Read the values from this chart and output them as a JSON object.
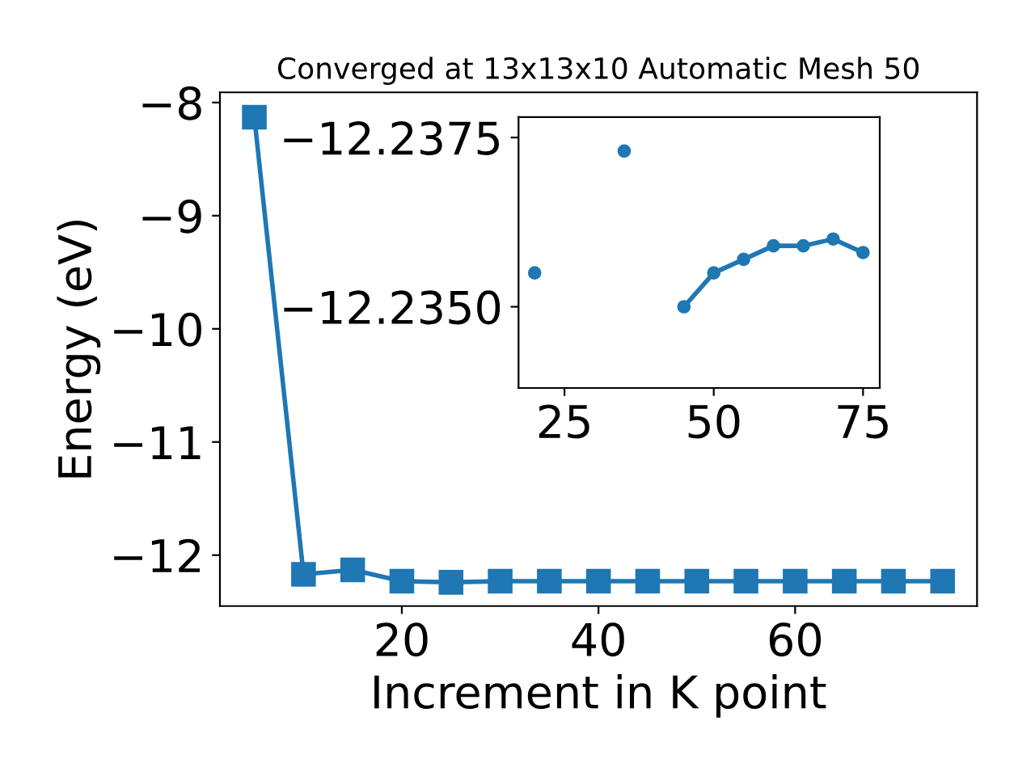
{
  "chart_data": [
    {
      "type": "line",
      "title": "Converged at 13x13x10 Automatic Mesh 50",
      "xlabel": "Increment in K point",
      "ylabel": "Energy (eV)",
      "x": [
        5,
        10,
        15,
        20,
        25,
        30,
        35,
        40,
        45,
        50,
        55,
        60,
        65,
        70,
        75
      ],
      "series": [
        {
          "color": "#1f77b4",
          "values": [
            -8.13,
            -12.17,
            -12.13,
            -12.23,
            -12.24,
            -12.23,
            -12.23,
            -12.23,
            -12.23,
            -12.23,
            -12.23,
            -12.23,
            -12.23,
            -12.23,
            -12.23
          ]
        }
      ],
      "marker": "square",
      "xlim": [
        1.5,
        78.5
      ],
      "ylim": [
        -12.45,
        -7.91
      ],
      "xticks": [
        20,
        40,
        60
      ],
      "yticks": [
        {
          "value": -12,
          "label": "−12"
        },
        {
          "value": -11,
          "label": "−11"
        },
        {
          "value": -10,
          "label": "−10"
        },
        {
          "value": -9,
          "label": "−9"
        },
        {
          "value": -8,
          "label": "−8"
        }
      ]
    },
    {
      "type": "line",
      "x": [
        20,
        25,
        30,
        35,
        40,
        45,
        50,
        55,
        60,
        65,
        70,
        75
      ],
      "series": [
        {
          "color": "#1f77b4",
          "values": [
            -12.2355,
            null,
            null,
            -12.2373,
            null,
            -12.235,
            -12.2355,
            -12.2357,
            -12.2359,
            -12.2359,
            -12.236,
            -12.2358
          ]
        }
      ],
      "marker": "circle",
      "xlim": [
        17.3,
        77.8
      ],
      "ylim": [
        -12.2338,
        -12.2378
      ],
      "xticks": [
        25,
        50,
        75
      ],
      "yticks": [
        {
          "value": -12.2375,
          "label": "−12.2375"
        },
        {
          "value": -12.235,
          "label": "−12.2350"
        }
      ]
    }
  ]
}
